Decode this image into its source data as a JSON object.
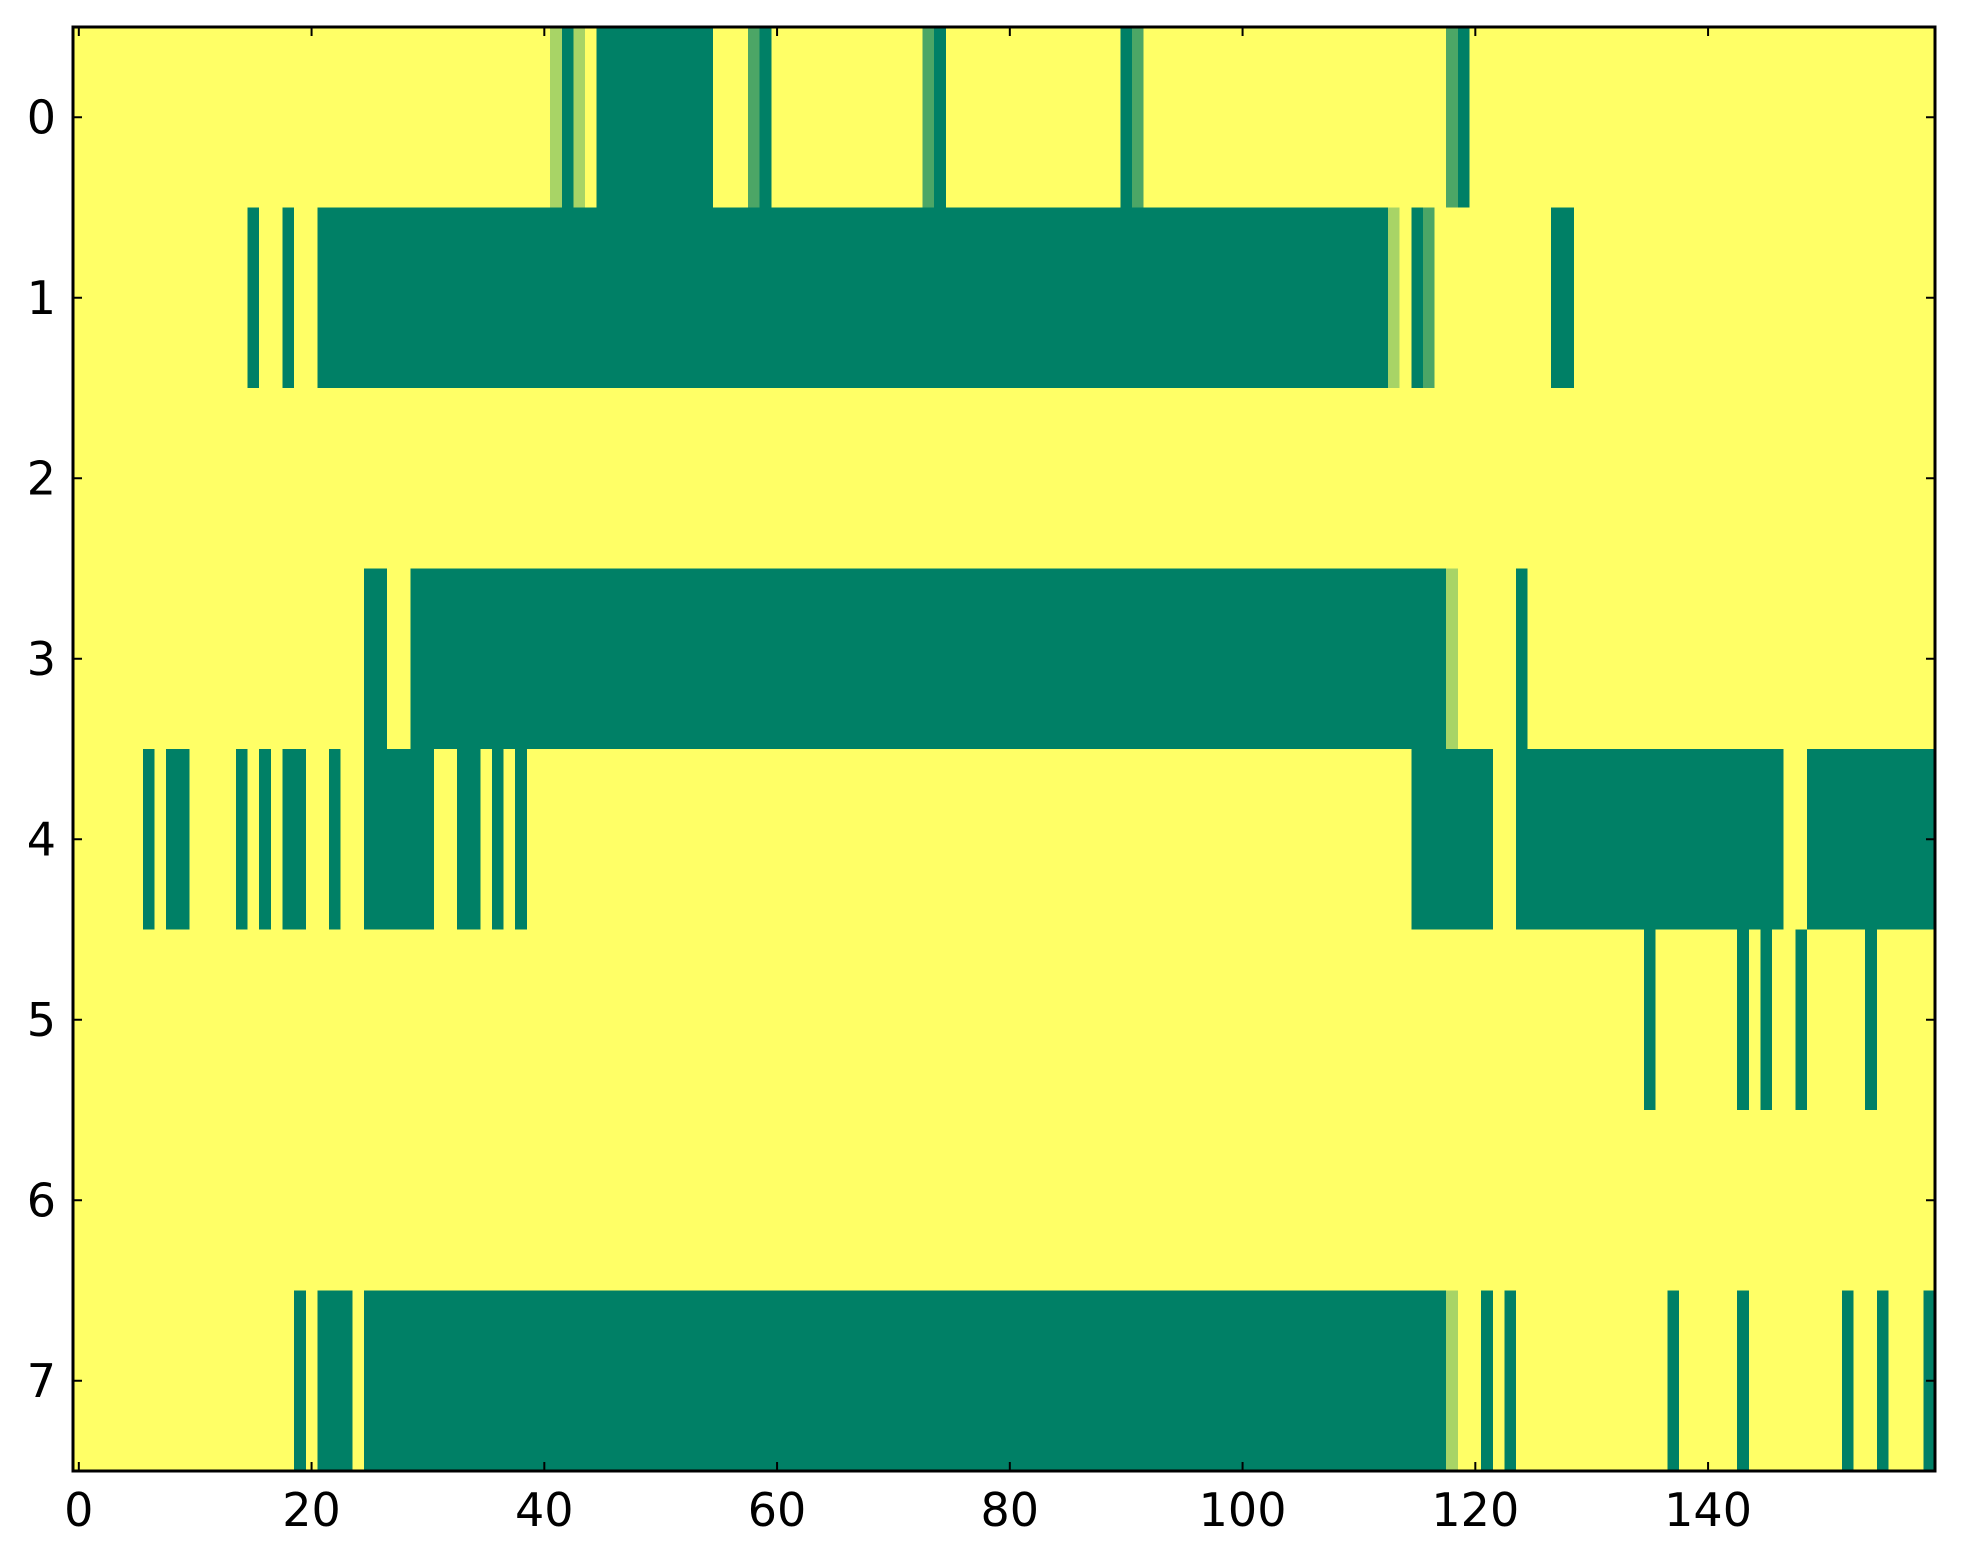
{
  "chart_data": {
    "type": "heatmap",
    "title": "",
    "xlabel": "",
    "ylabel": "",
    "xlim": [
      -0.5,
      159.5
    ],
    "ylim": [
      7.5,
      -0.5
    ],
    "n_cols": 160,
    "rows": [
      0,
      1,
      2,
      3,
      4,
      5,
      6,
      7
    ],
    "x_ticks": [
      0,
      20,
      40,
      60,
      80,
      100,
      120,
      140
    ],
    "x_tick_labels": [
      "0",
      "20",
      "40",
      "60",
      "80",
      "100",
      "120",
      "140"
    ],
    "y_ticks": [
      0,
      1,
      2,
      3,
      4,
      5,
      6,
      7
    ],
    "y_tick_labels": [
      "0",
      "1",
      "2",
      "3",
      "4",
      "5",
      "6",
      "7"
    ],
    "grid": false,
    "colormap": "summer_r",
    "colors": {
      "background": "#ffff66",
      "high": "#008066",
      "mid": "#4ca666",
      "low": "#a8d466"
    },
    "segments": [
      {
        "row": 0,
        "start": 41,
        "end": 41,
        "level": "low"
      },
      {
        "row": 0,
        "start": 42,
        "end": 42,
        "level": "high"
      },
      {
        "row": 0,
        "start": 43,
        "end": 43,
        "level": "low"
      },
      {
        "row": 0,
        "start": 45,
        "end": 54,
        "level": "high"
      },
      {
        "row": 0,
        "start": 58,
        "end": 58,
        "level": "mid"
      },
      {
        "row": 0,
        "start": 59,
        "end": 59,
        "level": "high"
      },
      {
        "row": 0,
        "start": 73,
        "end": 73,
        "level": "mid"
      },
      {
        "row": 0,
        "start": 74,
        "end": 74,
        "level": "high"
      },
      {
        "row": 0,
        "start": 90,
        "end": 90,
        "level": "high"
      },
      {
        "row": 0,
        "start": 91,
        "end": 91,
        "level": "mid"
      },
      {
        "row": 0,
        "start": 118,
        "end": 118,
        "level": "mid"
      },
      {
        "row": 0,
        "start": 119,
        "end": 119,
        "level": "high"
      },
      {
        "row": 1,
        "start": 15,
        "end": 15,
        "level": "high"
      },
      {
        "row": 1,
        "start": 18,
        "end": 18,
        "level": "high"
      },
      {
        "row": 1,
        "start": 21,
        "end": 112,
        "level": "high"
      },
      {
        "row": 1,
        "start": 113,
        "end": 113,
        "level": "low"
      },
      {
        "row": 1,
        "start": 115,
        "end": 115,
        "level": "high"
      },
      {
        "row": 1,
        "start": 116,
        "end": 116,
        "level": "mid"
      },
      {
        "row": 1,
        "start": 127,
        "end": 128,
        "level": "high"
      },
      {
        "row": 3,
        "start": 25,
        "end": 26,
        "level": "high"
      },
      {
        "row": 3,
        "start": 29,
        "end": 117,
        "level": "high"
      },
      {
        "row": 3,
        "start": 118,
        "end": 118,
        "level": "low"
      },
      {
        "row": 3,
        "start": 124,
        "end": 124,
        "level": "high"
      },
      {
        "row": 4,
        "start": 6,
        "end": 6,
        "level": "high"
      },
      {
        "row": 4,
        "start": 8,
        "end": 9,
        "level": "high"
      },
      {
        "row": 4,
        "start": 14,
        "end": 14,
        "level": "high"
      },
      {
        "row": 4,
        "start": 16,
        "end": 16,
        "level": "high"
      },
      {
        "row": 4,
        "start": 18,
        "end": 19,
        "level": "high"
      },
      {
        "row": 4,
        "start": 22,
        "end": 22,
        "level": "high"
      },
      {
        "row": 4,
        "start": 25,
        "end": 30,
        "level": "high"
      },
      {
        "row": 4,
        "start": 33,
        "end": 34,
        "level": "high"
      },
      {
        "row": 4,
        "start": 36,
        "end": 36,
        "level": "high"
      },
      {
        "row": 4,
        "start": 38,
        "end": 38,
        "level": "high"
      },
      {
        "row": 4,
        "start": 115,
        "end": 120,
        "level": "high"
      },
      {
        "row": 4,
        "start": 121,
        "end": 121,
        "level": "high"
      },
      {
        "row": 4,
        "start": 124,
        "end": 146,
        "level": "high"
      },
      {
        "row": 4,
        "start": 149,
        "end": 159,
        "level": "high"
      },
      {
        "row": 5,
        "start": 135,
        "end": 135,
        "level": "high"
      },
      {
        "row": 5,
        "start": 143,
        "end": 143,
        "level": "high"
      },
      {
        "row": 5,
        "start": 145,
        "end": 145,
        "level": "high"
      },
      {
        "row": 5,
        "start": 148,
        "end": 148,
        "level": "high"
      },
      {
        "row": 5,
        "start": 154,
        "end": 154,
        "level": "high"
      },
      {
        "row": 7,
        "start": 19,
        "end": 19,
        "level": "high"
      },
      {
        "row": 7,
        "start": 21,
        "end": 23,
        "level": "high"
      },
      {
        "row": 7,
        "start": 25,
        "end": 117,
        "level": "high"
      },
      {
        "row": 7,
        "start": 118,
        "end": 118,
        "level": "low"
      },
      {
        "row": 7,
        "start": 121,
        "end": 121,
        "level": "high"
      },
      {
        "row": 7,
        "start": 123,
        "end": 123,
        "level": "high"
      },
      {
        "row": 7,
        "start": 137,
        "end": 137,
        "level": "high"
      },
      {
        "row": 7,
        "start": 143,
        "end": 143,
        "level": "high"
      },
      {
        "row": 7,
        "start": 152,
        "end": 152,
        "level": "high"
      },
      {
        "row": 7,
        "start": 155,
        "end": 155,
        "level": "high"
      },
      {
        "row": 7,
        "start": 159,
        "end": 159,
        "level": "high"
      }
    ]
  }
}
